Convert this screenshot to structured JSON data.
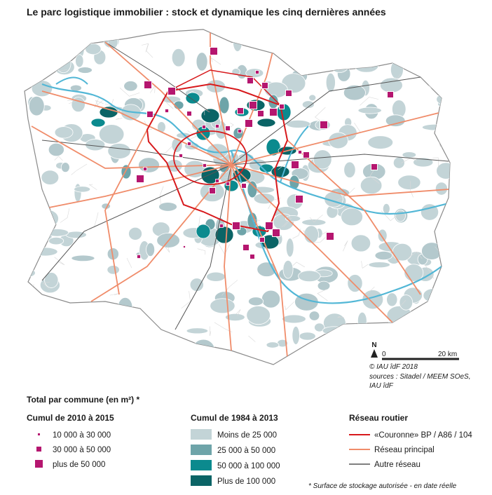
{
  "header": {
    "title": "Le parc logistique immobilier : stock et dynamique les cinq dernières années"
  },
  "map": {
    "scale": {
      "north": "N",
      "start": "0",
      "end": "20 km"
    },
    "credits": [
      "© IAU îdF 2018",
      "sources : Sitadel / MEEM SOeS,",
      "IAU îdF"
    ]
  },
  "legend": {
    "heading": "Total par commune (en m²) *",
    "groups": [
      {
        "title": "Cumul de 2010 à 2015",
        "items": [
          "10 000 à 30 000",
          "30 000 à 50 000",
          "plus de 50 000"
        ]
      },
      {
        "title": "Cumul de 1984 à 2013",
        "items": [
          "Moins de 25 000",
          "25 000 à 50 000",
          "50 000 à 100 000",
          "Plus de 100 000"
        ]
      },
      {
        "title": "Réseau routier",
        "items": [
          "«Couronne» BP / A86 / 104",
          "Réseau principal",
          "Autre réseau"
        ]
      }
    ]
  },
  "footnote": "* Surface de stockage autorisée - en date réelle"
}
